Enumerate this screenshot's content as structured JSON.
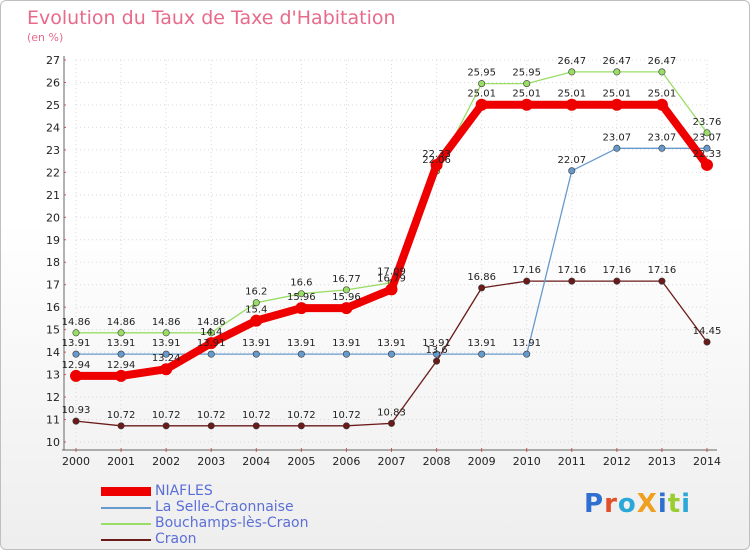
{
  "title": "Evolution du Taux de Taxe d'Habitation",
  "subtitle": "(en %)",
  "logo_text": "ProXiti",
  "chart_data": {
    "type": "line",
    "x": [
      2000,
      2001,
      2002,
      2003,
      2004,
      2005,
      2006,
      2007,
      2008,
      2009,
      2010,
      2011,
      2012,
      2013,
      2014
    ],
    "ylim": [
      10,
      27
    ],
    "yticks": [
      10,
      11,
      12,
      13,
      14,
      15,
      16,
      17,
      18,
      19,
      20,
      21,
      22,
      23,
      24,
      25,
      26,
      27
    ],
    "grid": true,
    "legend_position": "bottom-left",
    "series": [
      {
        "name": "NIAFLES",
        "color": "#ee0000",
        "values": [
          12.94,
          12.94,
          13.24,
          14.4,
          15.4,
          15.96,
          15.96,
          16.79,
          22.33,
          25.01,
          25.01,
          25.01,
          25.01,
          25.01,
          22.33
        ],
        "labels": [
          "12.94",
          "12.94",
          "13.24",
          "14.4",
          "15.4",
          "15.96",
          "15.96",
          "16.79",
          "22.33",
          "25.01",
          "25.01",
          "25.01",
          "25.01",
          "25.01",
          "22.33"
        ]
      },
      {
        "name": "La Selle-Craonnaise",
        "color": "#6699cc",
        "values": [
          13.91,
          13.91,
          13.91,
          13.91,
          13.91,
          13.91,
          13.91,
          13.91,
          13.91,
          13.91,
          13.91,
          22.07,
          23.07,
          23.07,
          23.07
        ],
        "labels": [
          "13.91",
          "13.91",
          "13.91",
          "13.91",
          "13.91",
          "13.91",
          "13.91",
          "13.91",
          "13.91",
          "13.91",
          "13.91",
          "22.07",
          "23.07",
          "23.07",
          "23.07"
        ]
      },
      {
        "name": "Bouchamps-lès-Craon",
        "color": "#99dd66",
        "values": [
          14.86,
          14.86,
          14.86,
          14.86,
          16.2,
          16.6,
          16.77,
          17.09,
          22.06,
          25.95,
          25.95,
          26.47,
          26.47,
          26.47,
          23.76
        ],
        "labels": [
          "14.86",
          "14.86",
          "14.86",
          "14.86",
          "16.2",
          "16.6",
          "16.77",
          "17.09",
          "22.06",
          "25.95",
          "25.95",
          "26.47",
          "26.47",
          "26.47",
          "23.76"
        ]
      },
      {
        "name": "Craon",
        "color": "#6b1a1a",
        "values": [
          10.93,
          10.72,
          10.72,
          10.72,
          10.72,
          10.72,
          10.72,
          10.83,
          13.6,
          16.86,
          17.16,
          17.16,
          17.16,
          17.16,
          14.45
        ],
        "labels": [
          "10.93",
          "10.72",
          "10.72",
          "10.72",
          "10.72",
          "10.72",
          "10.72",
          "10.83",
          "13.6",
          "16.86",
          "17.16",
          "17.16",
          "17.16",
          "17.16",
          "14.45"
        ]
      }
    ]
  }
}
